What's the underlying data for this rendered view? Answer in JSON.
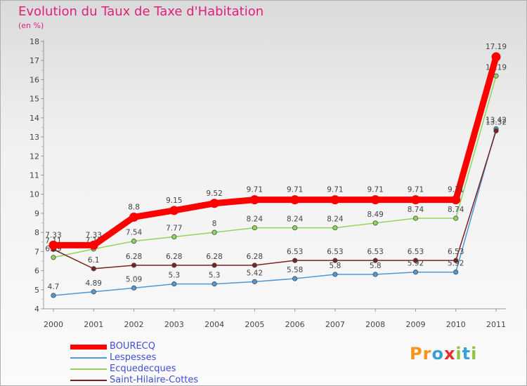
{
  "title": "Evolution du Taux de Taxe d'Habitation",
  "subtitle": "(en %)",
  "logo": "Proxiti",
  "chart_data": {
    "type": "line",
    "x": [
      "2000",
      "2001",
      "2002",
      "2003",
      "2004",
      "2005",
      "2006",
      "2007",
      "2008",
      "2009",
      "2010",
      "2011"
    ],
    "ylim": [
      4,
      18
    ],
    "yticks": [
      4,
      5,
      6,
      7,
      8,
      9,
      10,
      11,
      12,
      13,
      14,
      15,
      16,
      17,
      18
    ],
    "grid": false,
    "legend_position": "bottom-left",
    "series": [
      {
        "name": "BOURECQ",
        "color": "#ff0000",
        "values": [
          7.33,
          7.33,
          8.8,
          9.15,
          9.52,
          9.71,
          9.71,
          9.71,
          9.71,
          9.71,
          9.71,
          17.19
        ],
        "labels": [
          "7.33",
          "7.33",
          "8.8",
          "9.15",
          "9.52",
          "9.71",
          "9.71",
          "9.71",
          "9.71",
          "9.71",
          "9.71",
          "17.19"
        ]
      },
      {
        "name": "Lespesses",
        "color": "#4f97d6",
        "values": [
          4.7,
          4.89,
          5.09,
          5.3,
          5.3,
          5.42,
          5.58,
          5.8,
          5.8,
          5.92,
          5.92,
          13.42
        ],
        "labels": [
          "4.7",
          "4.89",
          "5.09",
          "5.3",
          "5.3",
          "5.42",
          "5.58",
          "5.8",
          "5.8",
          "5.92",
          "5.92",
          "13.42"
        ]
      },
      {
        "name": "Ecquedecques",
        "color": "#8ed65a",
        "values": [
          6.69,
          7.13,
          7.54,
          7.77,
          8,
          8.24,
          8.24,
          8.24,
          8.49,
          8.74,
          8.74,
          16.19
        ],
        "labels": [
          "6.69",
          "7.13",
          "7.54",
          "7.77",
          "8",
          "8.24",
          "8.24",
          "8.24",
          "8.49",
          "8.74",
          "8.74",
          "16.19"
        ]
      },
      {
        "name": "Saint-Hilaire-Cottes",
        "color": "#7a2121",
        "values": [
          7.11,
          6.1,
          6.28,
          6.28,
          6.28,
          6.28,
          6.53,
          6.53,
          6.53,
          6.53,
          6.53,
          13.32
        ],
        "labels": [
          "7.11",
          "6.1",
          "6.28",
          "6.28",
          "6.28",
          "6.28",
          "6.53",
          "6.53",
          "6.53",
          "6.53",
          "6.53",
          "13.32"
        ]
      }
    ]
  }
}
